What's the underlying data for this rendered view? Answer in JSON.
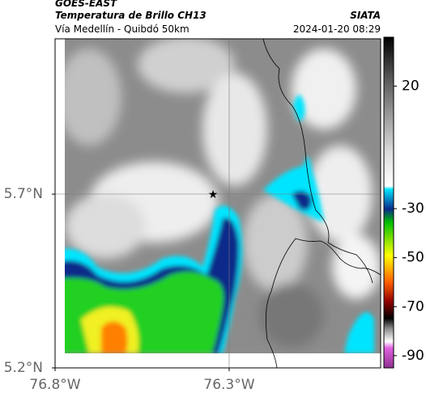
{
  "header": {
    "satellite": "GOES-EAST",
    "title": "Temperatura de Brillo CH13",
    "subtitle": "Vía Medellín - Quibdó 50km",
    "source": "SIATA",
    "datetime": "2024-01-20 08:29"
  },
  "map": {
    "xlim": [
      -76.8,
      -75.865
    ],
    "ylim": [
      5.2,
      6.147
    ],
    "xticks": [
      {
        "value": -76.8,
        "label": "76.8°W"
      },
      {
        "value": -76.3,
        "label": "76.3°W"
      }
    ],
    "yticks": [
      {
        "value": 5.7,
        "label": "5.7°N"
      },
      {
        "value": 5.2,
        "label": "5.2°N"
      }
    ]
  },
  "colorbar": {
    "lim": [
      -95,
      40
    ],
    "ticks": [
      20,
      -30,
      -50,
      -70,
      -90
    ]
  }
}
